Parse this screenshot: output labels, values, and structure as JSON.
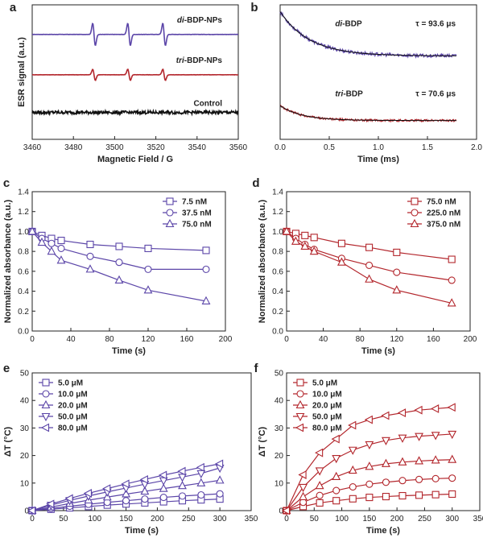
{
  "colors": {
    "purple": "#5b45a8",
    "red": "#b3262c",
    "black": "#111111",
    "fit": "#111111"
  },
  "chart_data": [
    {
      "panel": "a",
      "type": "line",
      "xlabel": "Magnetic Field / G",
      "ylabel": "ESR signal (a.u.)",
      "xlim": [
        3460,
        3560
      ],
      "xticks": [
        3460,
        3480,
        3500,
        3520,
        3540,
        3560
      ],
      "show_yticks": false,
      "series": [
        {
          "name": "di-BDP-NPs",
          "color": "#5b45a8",
          "baseline": 0.78,
          "peaks": [
            3490,
            3507,
            3524
          ],
          "amp": 0.12
        },
        {
          "name": "tri-BDP-NPs",
          "color": "#b3262c",
          "baseline": 0.48,
          "peaks": [
            3490,
            3507,
            3524
          ],
          "amp": 0.06
        },
        {
          "name": "Control",
          "color": "#111111",
          "baseline": 0.2,
          "peaks": [],
          "amp": 0.0,
          "noise": 0.012
        }
      ],
      "labels": [
        {
          "prefix": "di",
          "suffix": "-BDP-NPs"
        },
        {
          "prefix": "tri",
          "suffix": "-BDP-NPs"
        },
        {
          "prefix": "",
          "suffix": "Control"
        }
      ]
    },
    {
      "panel": "b",
      "type": "line",
      "xlabel": "Time (ms)",
      "ylabel": "",
      "xlim": [
        0.0,
        2.0
      ],
      "xticks": [
        0.0,
        0.5,
        1.0,
        1.5,
        2.0
      ],
      "show_yticks": false,
      "series": [
        {
          "name": "di-BDP",
          "color": "#5b45a8",
          "offset": 0.62,
          "amp": 0.33,
          "tau_ms": 0.0936,
          "xmax": 1.8,
          "noise": 0.012
        },
        {
          "name": "tri-BDP",
          "color": "#b3262c",
          "offset": 0.14,
          "amp": 0.11,
          "tau_ms": 0.0706,
          "xmax": 1.8,
          "noise": 0.008
        }
      ],
      "labels": [
        {
          "prefix": "di",
          "suffix": "-BDP",
          "tau": "τ = 93.6 μs"
        },
        {
          "prefix": "tri",
          "suffix": "-BDP",
          "tau": "τ = 70.6 μs"
        }
      ]
    },
    {
      "panel": "c",
      "type": "line",
      "xlabel": "Time (s)",
      "ylabel": "Normalized absorbance (a.u.)",
      "xlim": [
        0,
        200
      ],
      "ylim": [
        0.0,
        1.4
      ],
      "xticks": [
        0,
        40,
        80,
        120,
        160,
        200
      ],
      "yticks": [
        0.0,
        0.2,
        0.4,
        0.6,
        0.8,
        1.0,
        1.2,
        1.4
      ],
      "yfmt": 1,
      "color": "#5b45a8",
      "x": [
        0,
        10,
        20,
        30,
        60,
        90,
        120,
        180
      ],
      "series": [
        {
          "name": "7.5 nM",
          "marker": "square",
          "values": [
            1.0,
            0.96,
            0.93,
            0.91,
            0.87,
            0.85,
            0.83,
            0.81
          ]
        },
        {
          "name": "37.5 nM",
          "marker": "circle",
          "values": [
            1.0,
            0.93,
            0.88,
            0.83,
            0.75,
            0.69,
            0.62,
            0.62
          ]
        },
        {
          "name": "75.0 nM",
          "marker": "triangle-up",
          "values": [
            1.0,
            0.89,
            0.8,
            0.71,
            0.62,
            0.51,
            0.41,
            0.3
          ]
        }
      ],
      "legend_position": "top-right"
    },
    {
      "panel": "d",
      "type": "line",
      "xlabel": "Time (s)",
      "ylabel": "Normalized absorbance (a.u.)",
      "xlim": [
        0,
        200
      ],
      "ylim": [
        0.0,
        1.4
      ],
      "xticks": [
        0,
        40,
        80,
        120,
        160,
        200
      ],
      "yticks": [
        0.0,
        0.2,
        0.4,
        0.6,
        0.8,
        1.0,
        1.2,
        1.4
      ],
      "yfmt": 1,
      "color": "#b3262c",
      "x": [
        0,
        10,
        20,
        30,
        60,
        90,
        120,
        180
      ],
      "series": [
        {
          "name": "75.0 nM",
          "marker": "square",
          "values": [
            1.0,
            0.98,
            0.96,
            0.94,
            0.88,
            0.84,
            0.79,
            0.72
          ]
        },
        {
          "name": "225.0 nM",
          "marker": "circle",
          "values": [
            1.0,
            0.93,
            0.87,
            0.82,
            0.73,
            0.66,
            0.59,
            0.51
          ]
        },
        {
          "name": "375.0 nM",
          "marker": "triangle-up",
          "values": [
            1.0,
            0.9,
            0.85,
            0.8,
            0.69,
            0.52,
            0.41,
            0.28
          ]
        }
      ],
      "legend_position": "top-right"
    },
    {
      "panel": "e",
      "type": "line",
      "xlabel": "Time (s)",
      "ylabel": "ΔT (°C)",
      "xlim": [
        0,
        350
      ],
      "ylim": [
        0,
        50
      ],
      "xticks": [
        0,
        50,
        100,
        150,
        200,
        250,
        300,
        350
      ],
      "yticks": [
        0,
        10,
        20,
        30,
        40,
        50
      ],
      "yfmt": 0,
      "color": "#5b45a8",
      "x": [
        0,
        30,
        60,
        90,
        120,
        150,
        180,
        210,
        240,
        270,
        300
      ],
      "series": [
        {
          "name": "5.0 μM",
          "marker": "square",
          "values": [
            0,
            0.5,
            1.0,
            1.5,
            2.0,
            2.4,
            2.8,
            3.2,
            3.6,
            3.9,
            4.2
          ]
        },
        {
          "name": "10.0 μM",
          "marker": "circle",
          "values": [
            0,
            0.8,
            1.6,
            2.3,
            3.0,
            3.6,
            4.2,
            4.8,
            5.3,
            5.7,
            6.1
          ]
        },
        {
          "name": "20.0 μM",
          "marker": "triangle-up",
          "values": [
            0,
            1.3,
            2.6,
            3.8,
            4.9,
            6.0,
            7.0,
            8.0,
            9.0,
            10.0,
            11.0
          ]
        },
        {
          "name": "50.0 μM",
          "marker": "triangle-down",
          "values": [
            0,
            2.0,
            3.7,
            5.3,
            6.8,
            8.2,
            9.6,
            10.9,
            12.2,
            13.5,
            15.5
          ]
        },
        {
          "name": "80.0 μM",
          "marker": "triangle-left",
          "values": [
            0,
            2.4,
            4.4,
            6.3,
            8.0,
            9.7,
            11.3,
            12.9,
            14.3,
            15.7,
            17.0
          ]
        }
      ],
      "legend_position": "top-left"
    },
    {
      "panel": "f",
      "type": "line",
      "xlabel": "Time (s)",
      "ylabel": "ΔT (°C)",
      "xlim": [
        0,
        350
      ],
      "ylim": [
        0,
        50
      ],
      "xticks": [
        0,
        50,
        100,
        150,
        200,
        250,
        300,
        350
      ],
      "yticks": [
        0,
        10,
        20,
        30,
        40,
        50
      ],
      "yfmt": 0,
      "color": "#b3262c",
      "x": [
        0,
        30,
        60,
        90,
        120,
        150,
        180,
        210,
        240,
        270,
        300
      ],
      "series": [
        {
          "name": "5.0 μM",
          "marker": "square",
          "values": [
            0,
            1.5,
            2.8,
            3.6,
            4.3,
            4.8,
            5.1,
            5.4,
            5.6,
            5.8,
            6.0
          ]
        },
        {
          "name": "10.0 μM",
          "marker": "circle",
          "values": [
            0,
            3.0,
            5.5,
            7.3,
            8.6,
            9.6,
            10.3,
            10.9,
            11.3,
            11.6,
            11.8
          ]
        },
        {
          "name": "20.0 μM",
          "marker": "triangle-up",
          "values": [
            0,
            5.0,
            9.0,
            12.3,
            14.6,
            16.0,
            17.0,
            17.6,
            18.0,
            18.3,
            18.5
          ]
        },
        {
          "name": "50.0 μM",
          "marker": "triangle-down",
          "values": [
            0,
            8.5,
            14.5,
            19.0,
            22.0,
            24.0,
            25.5,
            26.4,
            27.0,
            27.4,
            27.8
          ]
        },
        {
          "name": "80.0 μM",
          "marker": "triangle-left",
          "values": [
            0,
            13.0,
            21.0,
            26.0,
            31.0,
            33.0,
            34.5,
            35.5,
            36.5,
            37.0,
            37.5
          ]
        }
      ],
      "legend_position": "top-left"
    }
  ]
}
